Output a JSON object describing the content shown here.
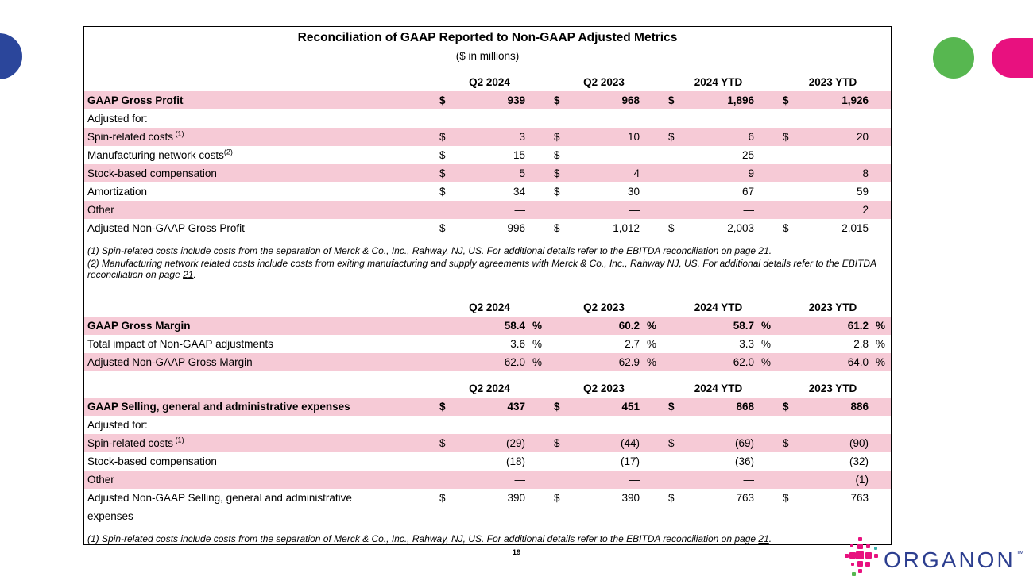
{
  "slide": {
    "title": "Reconciliation of GAAP Reported to Non-GAAP Adjusted Metrics",
    "subtitle": "($ in millions)",
    "page_number": "19",
    "brand": {
      "name": "ORGANON",
      "tm": "™"
    }
  },
  "columns": [
    "Q2 2024",
    "Q2 2023",
    "2024 YTD",
    "2023 YTD"
  ],
  "colors": {
    "row_highlight": "#F6CAD6",
    "brand_magenta": "#E8117F",
    "brand_green": "#57B750",
    "brand_navy_blue": "#2B469B",
    "logo_text_blue": "#2C3E8F",
    "logo_teal": "#3AAFA9"
  },
  "sections": [
    {
      "id": "gross-profit",
      "rows": [
        {
          "label": "GAAP Gross Profit",
          "bold": true,
          "shaded": true,
          "cells": [
            [
              "$",
              "939"
            ],
            [
              "$",
              "968"
            ],
            [
              "$",
              "1,896"
            ],
            [
              "$",
              "1,926"
            ]
          ]
        },
        {
          "label": "Adjusted for:",
          "cells": [
            [
              "",
              ""
            ],
            [
              "",
              ""
            ],
            [
              "",
              ""
            ],
            [
              "",
              ""
            ]
          ]
        },
        {
          "label": "Spin-related costs",
          "sup": " (1)",
          "shaded": true,
          "cells": [
            [
              "$",
              "3"
            ],
            [
              "$",
              "10"
            ],
            [
              "$",
              "6"
            ],
            [
              "$",
              "20"
            ]
          ]
        },
        {
          "label": "Manufacturing network costs",
          "sup": "(2)",
          "cells": [
            [
              "$",
              "15"
            ],
            [
              "$",
              "—"
            ],
            [
              "",
              "25"
            ],
            [
              "",
              "—"
            ]
          ]
        },
        {
          "label": "Stock-based compensation",
          "shaded": true,
          "cells": [
            [
              "$",
              "5"
            ],
            [
              "$",
              "4"
            ],
            [
              "",
              "9"
            ],
            [
              "",
              "8"
            ]
          ]
        },
        {
          "label": "Amortization",
          "cells": [
            [
              "$",
              "34"
            ],
            [
              "$",
              "30"
            ],
            [
              "",
              "67"
            ],
            [
              "",
              "59"
            ]
          ]
        },
        {
          "label": "Other",
          "shaded": true,
          "cells": [
            [
              "",
              "—"
            ],
            [
              "",
              "—"
            ],
            [
              "",
              "—"
            ],
            [
              "",
              "2"
            ]
          ]
        },
        {
          "label": "Adjusted Non-GAAP Gross Profit",
          "cells": [
            [
              "$",
              "996"
            ],
            [
              "$",
              "1,012"
            ],
            [
              "$",
              "2,003"
            ],
            [
              "$",
              "2,015"
            ]
          ]
        }
      ],
      "footnotes": [
        {
          "pre": "(1) Spin-related costs include costs from the separation of Merck & Co., Inc., Rahway, NJ, US. For additional details refer to the EBITDA reconciliation on page ",
          "link": "21",
          "post": "."
        },
        {
          "pre": "(2) Manufacturing network related costs include costs from exiting manufacturing and supply agreements with Merck & Co., Inc., Rahway NJ, US. For additional details refer to the EBITDA reconciliation on page ",
          "link": "21",
          "post": "."
        }
      ]
    },
    {
      "id": "gross-margin",
      "rows": [
        {
          "label": "GAAP Gross Margin",
          "bold": true,
          "shaded": true,
          "cells": [
            [
              "",
              "58.4",
              "%"
            ],
            [
              "",
              "60.2",
              "%"
            ],
            [
              "",
              "58.7",
              "%"
            ],
            [
              "",
              "61.2",
              "%"
            ]
          ]
        },
        {
          "label": "Total impact of Non-GAAP adjustments",
          "cells": [
            [
              "",
              "3.6",
              "%"
            ],
            [
              "",
              "2.7",
              "%"
            ],
            [
              "",
              "3.3",
              "%"
            ],
            [
              "",
              "2.8",
              "%"
            ]
          ]
        },
        {
          "label": "Adjusted Non-GAAP Gross Margin",
          "shaded": true,
          "cells": [
            [
              "",
              "62.0",
              "%"
            ],
            [
              "",
              "62.9",
              "%"
            ],
            [
              "",
              "62.0",
              "%"
            ],
            [
              "",
              "64.0",
              "%"
            ]
          ]
        }
      ],
      "footnotes": []
    },
    {
      "id": "sga-expenses",
      "rows": [
        {
          "label": "GAAP Selling, general and administrative expenses",
          "bold": true,
          "shaded": true,
          "cells": [
            [
              "$",
              "437"
            ],
            [
              "$",
              "451"
            ],
            [
              "$",
              "868"
            ],
            [
              "$",
              "886"
            ]
          ]
        },
        {
          "label": "Adjusted for:",
          "cells": [
            [
              "",
              ""
            ],
            [
              "",
              ""
            ],
            [
              "",
              ""
            ],
            [
              "",
              ""
            ]
          ]
        },
        {
          "label": "Spin-related costs",
          "sup": " (1)",
          "shaded": true,
          "cells": [
            [
              "$",
              "(29)"
            ],
            [
              "$",
              "(44)"
            ],
            [
              "$",
              "(69)"
            ],
            [
              "$",
              "(90)"
            ]
          ]
        },
        {
          "label": "Stock-based compensation",
          "cells": [
            [
              "",
              "(18)"
            ],
            [
              "",
              "(17)"
            ],
            [
              "",
              "(36)"
            ],
            [
              "",
              "(32)"
            ]
          ]
        },
        {
          "label": "Other",
          "shaded": true,
          "cells": [
            [
              "",
              "—"
            ],
            [
              "",
              "—"
            ],
            [
              "",
              "—"
            ],
            [
              "",
              "(1)"
            ]
          ]
        },
        {
          "label": "Adjusted Non-GAAP Selling, general and administrative expenses",
          "wrap": true,
          "cells": [
            [
              "$",
              "390"
            ],
            [
              "$",
              "390"
            ],
            [
              "$",
              "763"
            ],
            [
              "$",
              "763"
            ]
          ]
        }
      ],
      "footnotes": [
        {
          "pre": "(1) Spin-related costs include costs from the separation of Merck & Co., Inc., Rahway, NJ, US. For additional details refer to the EBITDA reconciliation on page ",
          "link": "21",
          "post": "."
        }
      ]
    }
  ]
}
